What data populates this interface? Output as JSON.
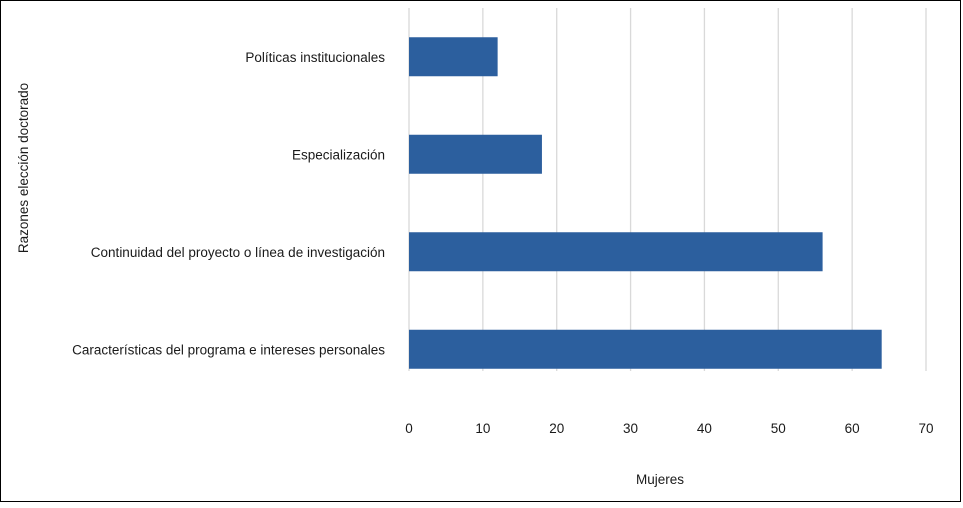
{
  "chart_data": {
    "type": "bar",
    "orientation": "horizontal",
    "categories": [
      "Políticas institucionales",
      "Especialización",
      "Continuidad del proyecto o línea de investigación",
      "Características del programa e intereses personales"
    ],
    "values": [
      12,
      18,
      56,
      64
    ],
    "xlabel": "Mujeres",
    "ylabel": "Razones elección doctorado",
    "xlim": [
      0,
      70
    ],
    "xticks": [
      0,
      10,
      20,
      30,
      40,
      50,
      60,
      70
    ],
    "grid": "vertical",
    "legend": "none",
    "colors": {
      "bar": "#2C5F9E",
      "grid": "#D9D9D9"
    }
  }
}
